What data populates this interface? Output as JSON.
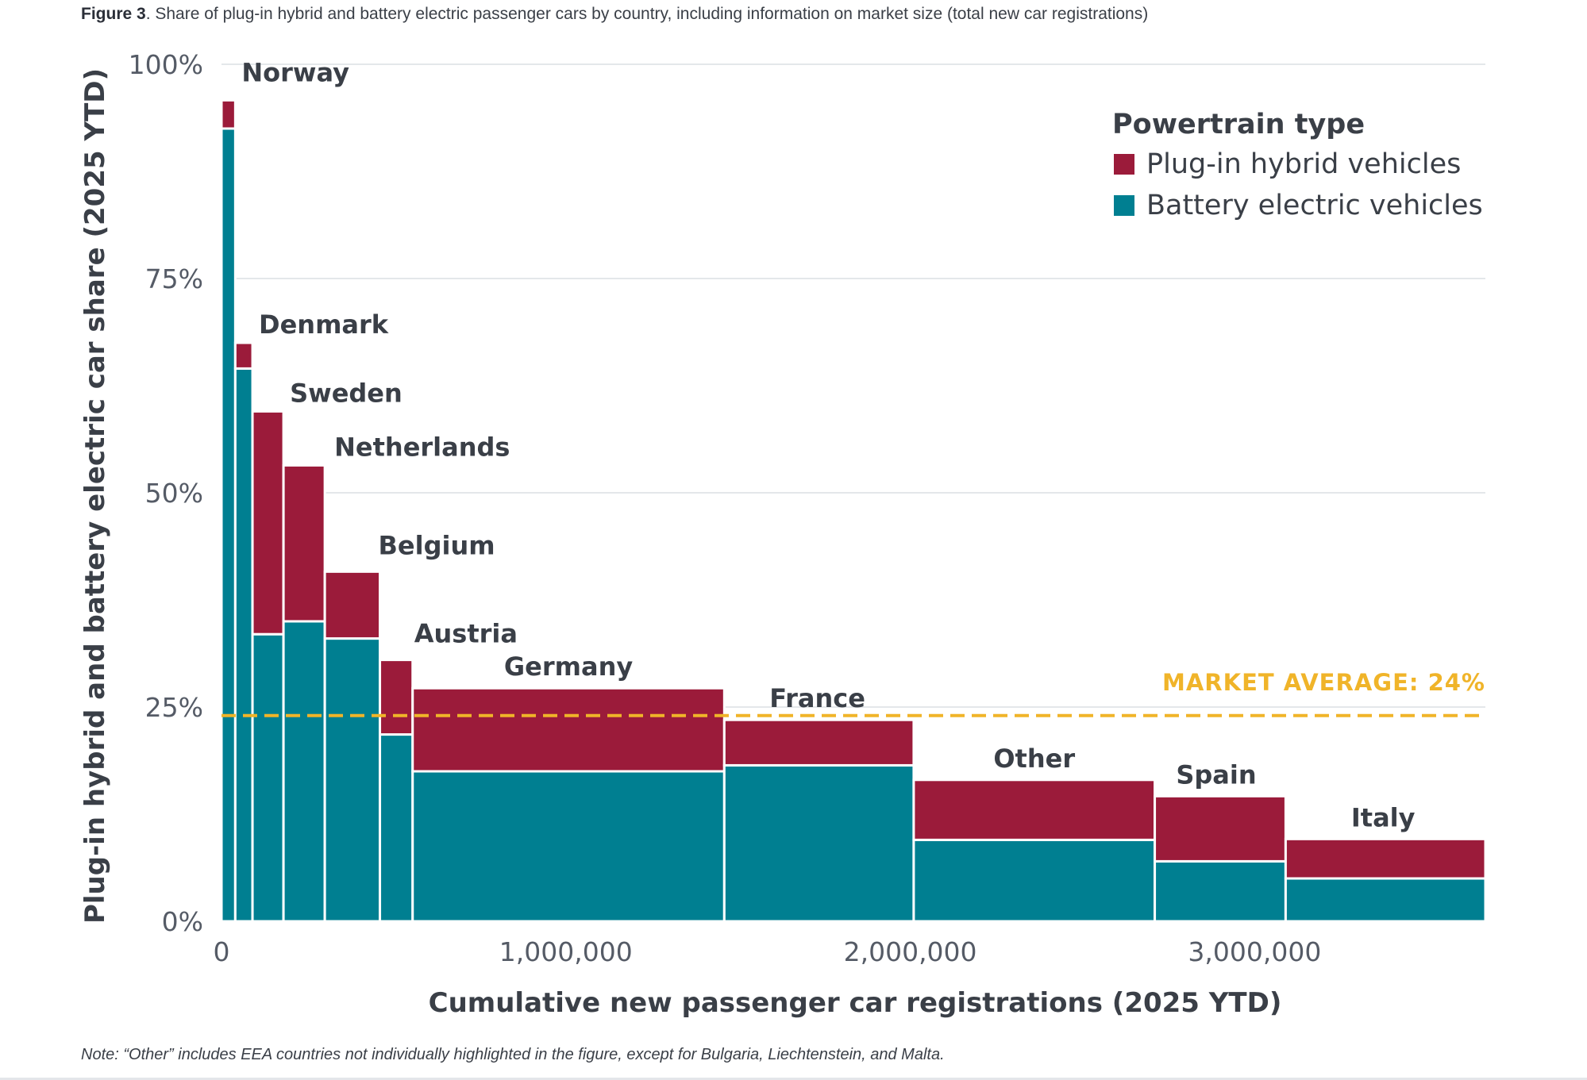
{
  "caption": {
    "figure_label": "Figure 3",
    "text": ". Share of plug-in hybrid and battery electric passenger cars by country, including information on market size (total new car registrations)"
  },
  "note": "Note: “Other” includes EEA countries not individually highlighted in the figure, except for Bulgaria, Liechtenstein, and Malta.",
  "chart_data": {
    "type": "bar",
    "subtype": "variable-width stacked (marimekko)",
    "xlabel": "Cumulative new passenger car registrations (2025 YTD)",
    "ylabel": "Plug-in hybrid and battery electric car share (2025 YTD)",
    "xlim": [
      0,
      3670000
    ],
    "ylim": [
      0,
      100
    ],
    "x_ticks": [
      {
        "value": 0,
        "label": "0"
      },
      {
        "value": 1000000,
        "label": "1,000,000"
      },
      {
        "value": 2000000,
        "label": "2,000,000"
      },
      {
        "value": 3000000,
        "label": "3,000,000"
      }
    ],
    "y_ticks": [
      {
        "value": 0,
        "label": "0%"
      },
      {
        "value": 25,
        "label": "25%"
      },
      {
        "value": 50,
        "label": "50%"
      },
      {
        "value": 75,
        "label": "75%"
      },
      {
        "value": 100,
        "label": "100%"
      }
    ],
    "grid": "horizontal",
    "legend": {
      "title": "Powertrain type",
      "position": "top-right",
      "entries": [
        {
          "name": "Plug-in hybrid vehicles",
          "color": "#9b1b3a"
        },
        {
          "name": "Battery electric vehicles",
          "color": "#007f91"
        }
      ]
    },
    "series": [
      {
        "name": "Battery electric vehicles",
        "color": "#007f91"
      },
      {
        "name": "Plug-in hybrid vehicles",
        "color": "#9b1b3a"
      }
    ],
    "categories": [
      "Norway",
      "Denmark",
      "Sweden",
      "Netherlands",
      "Belgium",
      "Austria",
      "Germany",
      "France",
      "Other",
      "Spain",
      "Italy"
    ],
    "bars": [
      {
        "category": "Norway",
        "x_start": 0,
        "x_end": 40000,
        "bev": 92.5,
        "phev": 3.3
      },
      {
        "category": "Denmark",
        "x_start": 40000,
        "x_end": 90000,
        "bev": 64.5,
        "phev": 3.0
      },
      {
        "category": "Sweden",
        "x_start": 90000,
        "x_end": 180000,
        "bev": 33.5,
        "phev": 26.0
      },
      {
        "category": "Netherlands",
        "x_start": 180000,
        "x_end": 300000,
        "bev": 35.0,
        "phev": 18.2
      },
      {
        "category": "Belgium",
        "x_start": 300000,
        "x_end": 460000,
        "bev": 33.0,
        "phev": 7.8
      },
      {
        "category": "Austria",
        "x_start": 460000,
        "x_end": 555000,
        "bev": 21.8,
        "phev": 8.7
      },
      {
        "category": "Germany",
        "x_start": 555000,
        "x_end": 1460000,
        "bev": 17.5,
        "phev": 9.7
      },
      {
        "category": "France",
        "x_start": 1460000,
        "x_end": 2010000,
        "bev": 18.2,
        "phev": 5.3
      },
      {
        "category": "Other",
        "x_start": 2010000,
        "x_end": 2710000,
        "bev": 9.5,
        "phev": 7.0
      },
      {
        "category": "Spain",
        "x_start": 2710000,
        "x_end": 3090000,
        "bev": 7.0,
        "phev": 7.6
      },
      {
        "category": "Italy",
        "x_start": 3090000,
        "x_end": 3670000,
        "bev": 5.0,
        "phev": 4.6
      }
    ],
    "reference_line": {
      "label": "MARKET AVERAGE: 24%",
      "value": 24,
      "color": "#f0b429",
      "style": "dashed"
    }
  }
}
